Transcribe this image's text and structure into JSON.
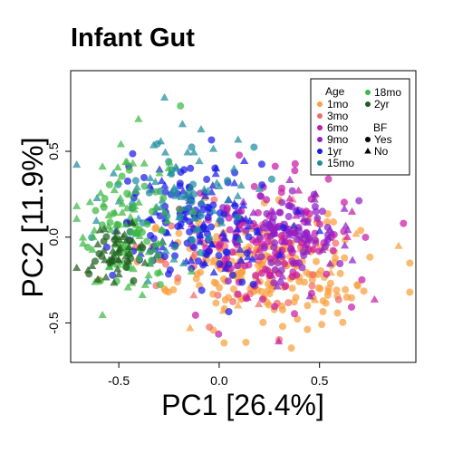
{
  "chart_data": {
    "type": "scatter",
    "title": "Infant Gut",
    "xlabel": "PC1 [26.4%]",
    "ylabel": "PC2 [11.9%]",
    "xlim": [
      -0.74,
      0.98
    ],
    "ylim": [
      -0.73,
      0.97
    ],
    "x_ticks": [
      -0.5,
      0.0,
      0.5
    ],
    "x_tick_labels": [
      "-0.5",
      "0.0",
      "0.5"
    ],
    "y_ticks": [
      -0.5,
      0.0,
      0.5
    ],
    "y_tick_labels": [
      "-0.5",
      "0.0",
      "0.5"
    ],
    "grid": false,
    "legend_position": "top-right",
    "legend": {
      "age_title": "Age",
      "age": [
        {
          "label": "1mo",
          "color": "#F9A03F"
        },
        {
          "label": "3mo",
          "color": "#F36A6A"
        },
        {
          "label": "6mo",
          "color": "#C71BA5"
        },
        {
          "label": "9mo",
          "color": "#8E1FC9"
        },
        {
          "label": "1yr",
          "color": "#1A1AE6"
        },
        {
          "label": "15mo",
          "color": "#1F8C9E"
        },
        {
          "label": "18mo",
          "color": "#3DB843"
        },
        {
          "label": "2yr",
          "color": "#1F5E1F"
        }
      ],
      "bf_title": "BF",
      "bf": [
        {
          "label": "Yes",
          "shape": "circle"
        },
        {
          "label": "No",
          "shape": "triangle"
        }
      ]
    },
    "clusters": [
      {
        "group": "1mo",
        "cx": 0.22,
        "cy": -0.18,
        "sx": 0.27,
        "sy": 0.16,
        "n": 230,
        "bf_no_fraction": 0.06
      },
      {
        "group": "3mo",
        "cx": 0.05,
        "cy": -0.15,
        "sx": 0.26,
        "sy": 0.17,
        "n": 45,
        "bf_no_fraction": 0.1
      },
      {
        "group": "6mo",
        "cx": 0.22,
        "cy": -0.02,
        "sx": 0.22,
        "sy": 0.18,
        "n": 150,
        "bf_no_fraction": 0.15
      },
      {
        "group": "9mo",
        "cx": 0.35,
        "cy": 0.05,
        "sx": 0.17,
        "sy": 0.15,
        "n": 110,
        "bf_no_fraction": 0.25
      },
      {
        "group": "1yr",
        "cx": -0.12,
        "cy": 0.08,
        "sx": 0.21,
        "sy": 0.19,
        "n": 170,
        "bf_no_fraction": 0.35
      },
      {
        "group": "15mo",
        "cx": -0.18,
        "cy": 0.25,
        "sx": 0.17,
        "sy": 0.2,
        "n": 90,
        "bf_no_fraction": 0.7
      },
      {
        "group": "18mo",
        "cx": -0.45,
        "cy": 0.05,
        "sx": 0.11,
        "sy": 0.2,
        "n": 120,
        "bf_no_fraction": 0.55
      },
      {
        "group": "2yr",
        "cx": -0.52,
        "cy": -0.08,
        "sx": 0.08,
        "sy": 0.09,
        "n": 55,
        "bf_no_fraction": 0.7
      }
    ]
  }
}
